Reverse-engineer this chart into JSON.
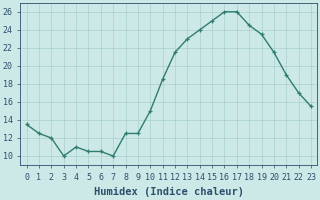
{
  "x": [
    0,
    1,
    2,
    3,
    4,
    5,
    6,
    7,
    8,
    9,
    10,
    11,
    12,
    13,
    14,
    15,
    16,
    17,
    18,
    19,
    20,
    21,
    22,
    23
  ],
  "y": [
    13.5,
    12.5,
    12.0,
    10.0,
    11.0,
    10.5,
    10.5,
    10.0,
    12.5,
    12.5,
    15.0,
    18.5,
    21.5,
    23.0,
    24.0,
    25.0,
    26.0,
    26.0,
    24.5,
    23.5,
    21.5,
    19.0,
    17.0,
    15.5
  ],
  "line_color": "#2e7d6e",
  "marker": "+",
  "bg_color": "#cce9e7",
  "grid_color": "#a8d0cd",
  "xlabel": "Humidex (Indice chaleur)",
  "ylim": [
    9,
    27
  ],
  "yticks": [
    10,
    12,
    14,
    16,
    18,
    20,
    22,
    24,
    26
  ],
  "xticks": [
    0,
    1,
    2,
    3,
    4,
    5,
    6,
    7,
    8,
    9,
    10,
    11,
    12,
    13,
    14,
    15,
    16,
    17,
    18,
    19,
    20,
    21,
    22,
    23
  ],
  "tick_color": "#2e4e6e",
  "label_fontsize": 7.5,
  "tick_fontsize": 6.0,
  "linewidth": 1.0,
  "markersize": 3.5,
  "markeredgewidth": 0.9
}
